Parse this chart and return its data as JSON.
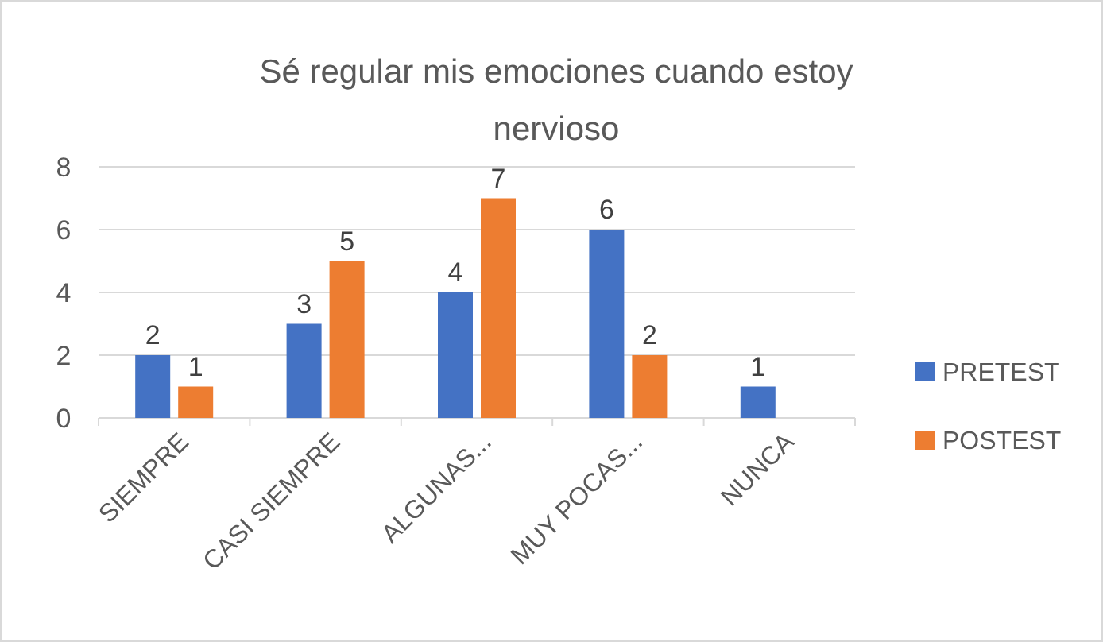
{
  "chart_data": {
    "type": "bar",
    "title": "Sé regular mis emociones cuando estoy nervioso",
    "categories": [
      "SIEMPRE",
      "CASI SIEMPRE",
      "ALGUNAS...",
      "MUY POCAS...",
      "NUNCA"
    ],
    "series": [
      {
        "name": "PRETEST",
        "color": "#4472c4",
        "values": [
          2,
          3,
          4,
          6,
          1
        ]
      },
      {
        "name": "POSTEST",
        "color": "#ed7d31",
        "values": [
          1,
          5,
          7,
          2,
          null
        ]
      }
    ],
    "ylim": [
      0,
      8
    ],
    "yticks": [
      0,
      2,
      4,
      6,
      8
    ],
    "grid": "y",
    "legend": "right",
    "data_labels": true
  }
}
